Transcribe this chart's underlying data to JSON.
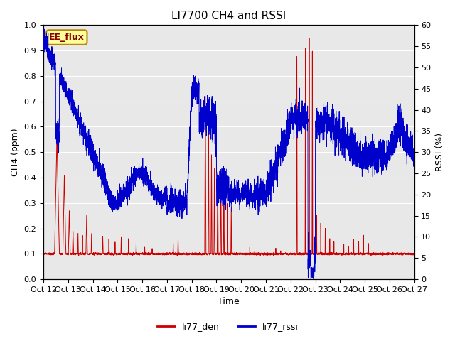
{
  "title": "LI7700 CH4 and RSSI",
  "xlabel": "Time",
  "ylabel_left": "CH4 (ppm)",
  "ylabel_right": "RSSI (%)",
  "annotation": "EE_flux",
  "legend_labels": [
    "li77_den",
    "li77_rssi"
  ],
  "legend_colors": [
    "#cc0000",
    "#0000cc"
  ],
  "left_ylim": [
    0.0,
    1.0
  ],
  "right_ylim": [
    0,
    60
  ],
  "left_yticks": [
    0.0,
    0.1,
    0.2,
    0.3,
    0.4,
    0.5,
    0.6,
    0.7,
    0.8,
    0.9,
    1.0
  ],
  "right_yticks": [
    0,
    5,
    10,
    15,
    20,
    25,
    30,
    35,
    40,
    45,
    50,
    55,
    60
  ],
  "xtick_labels": [
    "Oct 12",
    "Oct 13",
    "Oct 14",
    "Oct 15",
    "Oct 16",
    "Oct 17",
    "Oct 18",
    "Oct 19",
    "Oct 20",
    "Oct 21",
    "Oct 22",
    "Oct 23",
    "Oct 24",
    "Oct 25",
    "Oct 26",
    "Oct 27"
  ],
  "background_color": "#e8e8e8",
  "line_color_red": "#cc0000",
  "line_color_blue": "#0000cc",
  "title_fontsize": 11,
  "axis_fontsize": 9,
  "tick_fontsize": 8,
  "figsize": [
    6.4,
    4.8
  ],
  "dpi": 100
}
